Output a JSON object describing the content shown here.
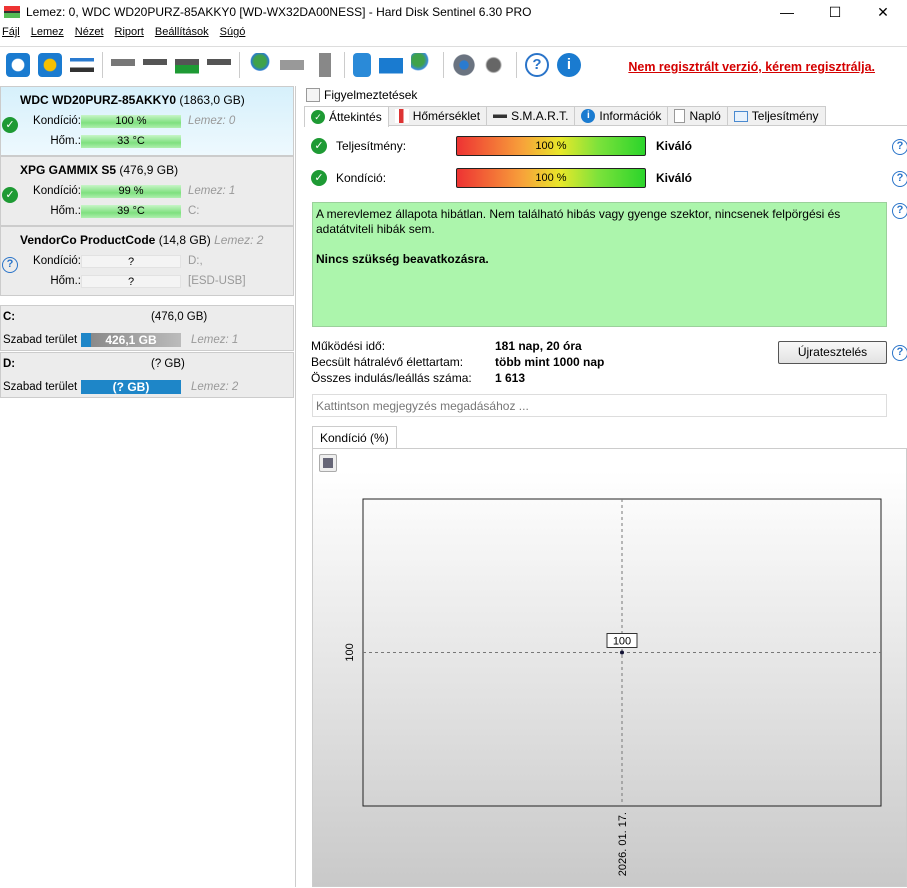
{
  "window": {
    "title": "Lemez: 0, WDC WD20PURZ-85AKKY0 [WD-WX32DA00NESS]  -  Hard Disk Sentinel 6.30 PRO",
    "minimize": "—",
    "maximize": "☐",
    "close": "✕"
  },
  "menu": [
    "Fájl",
    "Lemez",
    "Nézet",
    "Riport",
    "Beállítások",
    "Súgó"
  ],
  "toolbar": {
    "icons": [
      "refresh-icon",
      "refresh-warning-icon",
      "disk-info-icon",
      "disk-icon",
      "disk-clock-icon",
      "disk-check-icon",
      "disk-search-icon",
      "globe-disk-icon",
      "network-icon",
      "server-icon",
      "notes-icon",
      "mail-icon",
      "remote-icon",
      "gear-icon",
      "speaker-icon",
      "help-icon",
      "info-icon"
    ],
    "register_link": "Nem regisztrált verzió, kérem regisztrálja."
  },
  "disks": [
    {
      "name": "WDC WD20PURZ-85AKKY0",
      "size": "(1863,0 GB)",
      "status": "ok",
      "cond_label": "Kondíció:",
      "cond": "100 %",
      "temp_label": "Hőm.:",
      "temp": "33 °C",
      "side1": "Lemez: 0",
      "side2": ""
    },
    {
      "name": "XPG GAMMIX S5",
      "size": "(476,9 GB)",
      "status": "ok",
      "cond_label": "Kondíció:",
      "cond": "99 %",
      "temp_label": "Hőm.:",
      "temp": "39 °C",
      "side1": "Lemez: 1",
      "side2": "C:"
    },
    {
      "name": "VendorCo ProductCode",
      "size": "(14,8 GB)",
      "extra": "Lemez: 2",
      "status": "unknown",
      "cond_label": "Kondíció:",
      "cond": "?",
      "temp_label": "Hőm.:",
      "temp": "?",
      "side1": "D:,",
      "side2": "[ESD-USB]"
    }
  ],
  "volumes": [
    {
      "name": "C:",
      "size": "(476,0 GB)",
      "free_label": "Szabad terület",
      "free": "426,1 GB",
      "disk": "Lemez: 1",
      "used_fraction": 0.1
    },
    {
      "name": "D:",
      "size": "(? GB)",
      "free_label": "Szabad terület",
      "free": "(? GB)",
      "disk": "Lemez: 2"
    }
  ],
  "warnings_tab": "Figyelmeztetések",
  "tabs": [
    "Áttekintés",
    "Hőmérséklet",
    "S.M.A.R.T.",
    "Információk",
    "Napló",
    "Teljesítmény"
  ],
  "overview": {
    "performance_label": "Teljesítmény:",
    "performance": "100 %",
    "performance_rating": "Kiváló",
    "condition_label": "Kondíció:",
    "condition": "100 %",
    "condition_rating": "Kiváló",
    "message": "A merevlemez állapota hibátlan. Nem található hibás vagy gyenge szektor, nincsenek felpörgési és adatátviteli hibák sem.",
    "message_bold": "Nincs szükség beavatkozásra.",
    "uptime_label": "Működési idő:",
    "uptime": "181 nap, 20 óra",
    "lifetime_label": "Becsült hátralévő élettartam:",
    "lifetime": "több mint 1000 nap",
    "starts_label": "Összes indulás/leállás száma:",
    "starts": "1 613",
    "retest": "Újratesztelés",
    "note_placeholder": "Kattintson megjegyzés megadásához ..."
  },
  "chart_tab": "Kondíció  (%)",
  "chart_data": {
    "type": "line",
    "x": [
      "2026. 01. 17."
    ],
    "values": [
      100
    ],
    "y_tick": "100",
    "point_label": "100",
    "grid": true
  }
}
